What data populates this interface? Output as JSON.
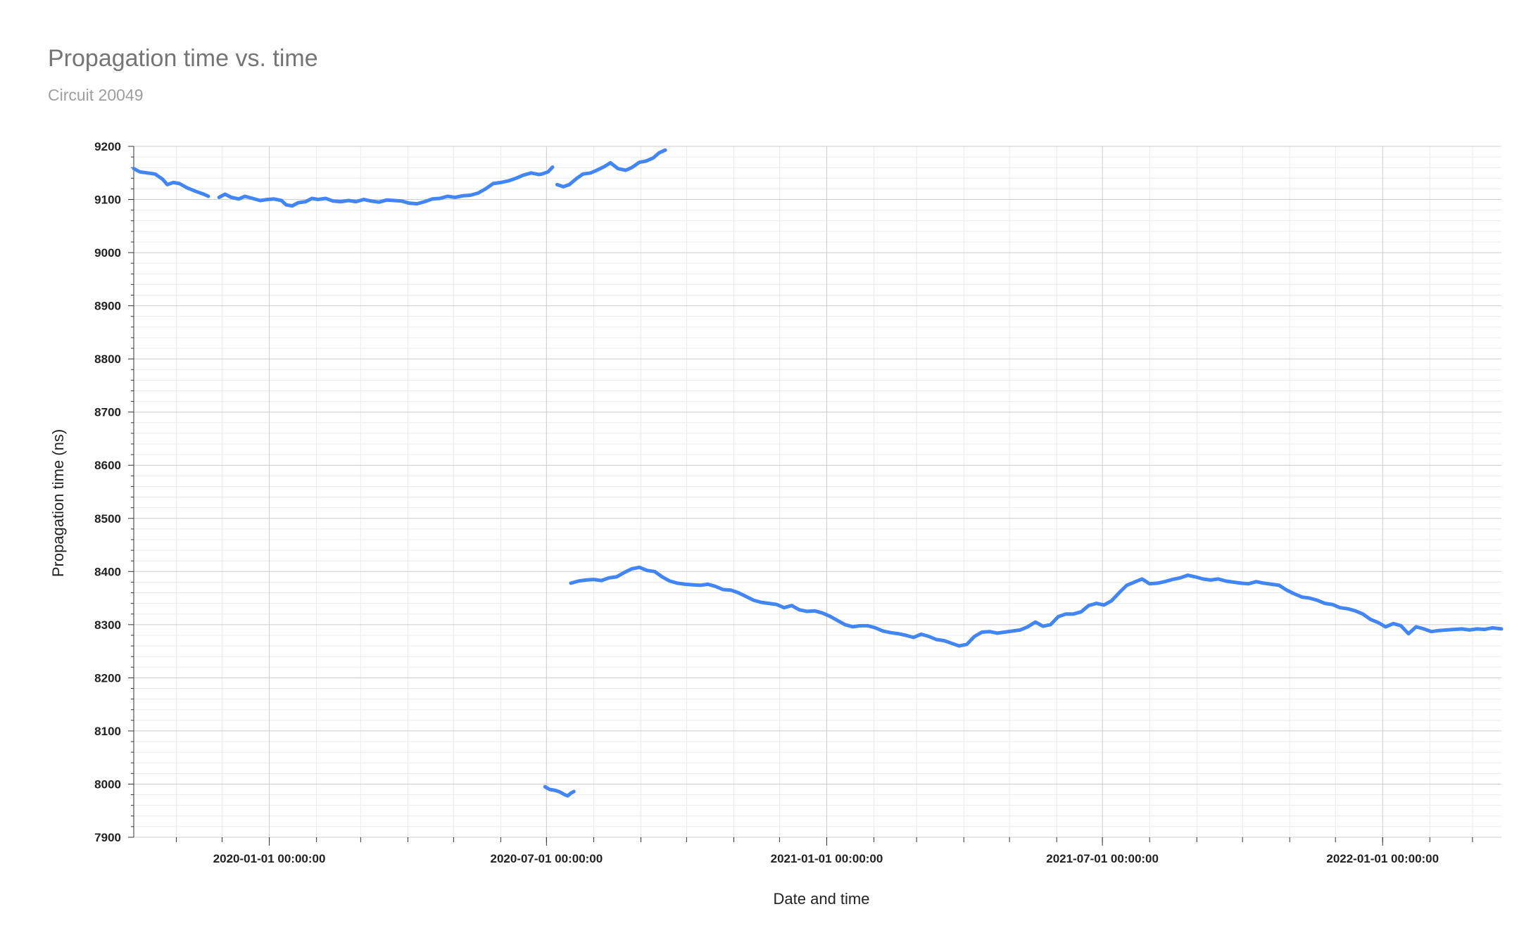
{
  "chart_data": {
    "type": "line",
    "title": "Propagation time vs. time",
    "subtitle": "Circuit 20049",
    "xlabel": "Date and time",
    "ylabel": "Propagation time (ns)",
    "ylim": [
      7900,
      9200
    ],
    "xlim": [
      "2019-10-04",
      "2022-03-20"
    ],
    "yticks": [
      7900,
      8000,
      8100,
      8200,
      8300,
      8400,
      8500,
      8600,
      8700,
      8800,
      8900,
      9000,
      9100,
      9200
    ],
    "xticks": [
      {
        "date": "2020-01-01",
        "label": "2020-01-01 00:00:00"
      },
      {
        "date": "2020-07-01",
        "label": "2020-07-01 00:00:00"
      },
      {
        "date": "2021-01-01",
        "label": "2021-01-01 00:00:00"
      },
      {
        "date": "2021-07-01",
        "label": "2021-07-01 00:00:00"
      },
      {
        "date": "2022-01-01",
        "label": "2022-01-01 00:00:00"
      }
    ],
    "grid": true,
    "legend": "none",
    "colors": {
      "line": "#4285f4",
      "grid_major": "#cccccc",
      "grid_minor": "#ebebeb",
      "axis_text": "#222222"
    },
    "series": [
      {
        "segments": [
          [
            [
              "2019-10-04",
              9158
            ],
            [
              "2019-10-08",
              9152
            ],
            [
              "2019-10-13",
              9150
            ],
            [
              "2019-10-18",
              9148
            ],
            [
              "2019-10-23",
              9138
            ],
            [
              "2019-10-26",
              9128
            ],
            [
              "2019-10-30",
              9132
            ],
            [
              "2019-11-03",
              9130
            ],
            [
              "2019-11-08",
              9122
            ],
            [
              "2019-11-14",
              9115
            ],
            [
              "2019-11-19",
              9110
            ],
            [
              "2019-11-22",
              9106
            ]
          ],
          [
            [
              "2019-11-29",
              9104
            ],
            [
              "2019-12-03",
              9110
            ],
            [
              "2019-12-07",
              9104
            ],
            [
              "2019-12-12",
              9101
            ],
            [
              "2019-12-16",
              9106
            ],
            [
              "2019-12-21",
              9102
            ],
            [
              "2019-12-26",
              9098
            ],
            [
              "2019-12-31",
              9100
            ],
            [
              "2020-01-04",
              9101
            ],
            [
              "2020-01-09",
              9098
            ],
            [
              "2020-01-12",
              9090
            ],
            [
              "2020-01-16",
              9088
            ],
            [
              "2020-01-20",
              9094
            ],
            [
              "2020-01-25",
              9096
            ],
            [
              "2020-01-29",
              9102
            ],
            [
              "2020-02-02",
              9100
            ],
            [
              "2020-02-07",
              9102
            ],
            [
              "2020-02-12",
              9097
            ],
            [
              "2020-02-17",
              9096
            ],
            [
              "2020-02-22",
              9098
            ],
            [
              "2020-02-27",
              9096
            ],
            [
              "2020-03-03",
              9100
            ],
            [
              "2020-03-08",
              9097
            ],
            [
              "2020-03-13",
              9095
            ],
            [
              "2020-03-18",
              9099
            ],
            [
              "2020-03-23",
              9098
            ],
            [
              "2020-03-28",
              9097
            ],
            [
              "2020-04-02",
              9093
            ],
            [
              "2020-04-07",
              9092
            ],
            [
              "2020-04-12",
              9096
            ],
            [
              "2020-04-17",
              9101
            ],
            [
              "2020-04-22",
              9102
            ],
            [
              "2020-04-27",
              9106
            ],
            [
              "2020-05-02",
              9104
            ],
            [
              "2020-05-07",
              9107
            ],
            [
              "2020-05-12",
              9108
            ],
            [
              "2020-05-17",
              9112
            ],
            [
              "2020-05-22",
              9120
            ],
            [
              "2020-05-27",
              9130
            ],
            [
              "2020-06-01",
              9132
            ],
            [
              "2020-06-06",
              9135
            ],
            [
              "2020-06-11",
              9140
            ],
            [
              "2020-06-16",
              9146
            ],
            [
              "2020-06-21",
              9150
            ],
            [
              "2020-06-26",
              9147
            ],
            [
              "2020-06-28",
              9148
            ],
            [
              "2020-07-02",
              9152
            ],
            [
              "2020-07-05",
              9161
            ]
          ],
          [
            [
              "2020-07-08",
              9128
            ],
            [
              "2020-07-12",
              9124
            ],
            [
              "2020-07-16",
              9128
            ],
            [
              "2020-07-21",
              9140
            ],
            [
              "2020-07-25",
              9148
            ],
            [
              "2020-07-30",
              9150
            ],
            [
              "2020-08-03",
              9155
            ],
            [
              "2020-08-08",
              9162
            ],
            [
              "2020-08-12",
              9169
            ],
            [
              "2020-08-17",
              9158
            ],
            [
              "2020-08-22",
              9155
            ],
            [
              "2020-08-26",
              9160
            ],
            [
              "2020-08-31",
              9170
            ],
            [
              "2020-09-04",
              9172
            ],
            [
              "2020-09-09",
              9178
            ],
            [
              "2020-09-13",
              9188
            ],
            [
              "2020-09-17",
              9193
            ]
          ]
        ]
      },
      {
        "segments": [
          [
            [
              "2020-06-30",
              7995
            ],
            [
              "2020-07-03",
              7990
            ],
            [
              "2020-07-07",
              7988
            ],
            [
              "2020-07-10",
              7985
            ],
            [
              "2020-07-13",
              7980
            ],
            [
              "2020-07-15",
              7978
            ],
            [
              "2020-07-17",
              7983
            ],
            [
              "2020-07-19",
              7986
            ]
          ]
        ]
      },
      {
        "segments": [
          [
            [
              "2020-07-17",
              8378
            ],
            [
              "2020-07-22",
              8382
            ],
            [
              "2020-07-27",
              8384
            ],
            [
              "2020-08-01",
              8385
            ],
            [
              "2020-08-06",
              8383
            ],
            [
              "2020-08-11",
              8388
            ],
            [
              "2020-08-16",
              8390
            ],
            [
              "2020-08-21",
              8398
            ],
            [
              "2020-08-26",
              8405
            ],
            [
              "2020-08-31",
              8408
            ],
            [
              "2020-09-05",
              8402
            ],
            [
              "2020-09-10",
              8400
            ],
            [
              "2020-09-15",
              8390
            ],
            [
              "2020-09-20",
              8382
            ],
            [
              "2020-09-25",
              8378
            ],
            [
              "2020-09-30",
              8376
            ],
            [
              "2020-10-05",
              8375
            ],
            [
              "2020-10-10",
              8374
            ],
            [
              "2020-10-15",
              8376
            ],
            [
              "2020-10-20",
              8372
            ],
            [
              "2020-10-25",
              8366
            ],
            [
              "2020-10-30",
              8365
            ],
            [
              "2020-11-04",
              8360
            ],
            [
              "2020-11-09",
              8353
            ],
            [
              "2020-11-14",
              8346
            ],
            [
              "2020-11-19",
              8342
            ],
            [
              "2020-11-24",
              8340
            ],
            [
              "2020-11-29",
              8338
            ],
            [
              "2020-12-04",
              8332
            ],
            [
              "2020-12-09",
              8336
            ],
            [
              "2020-12-14",
              8328
            ],
            [
              "2020-12-19",
              8325
            ],
            [
              "2020-12-24",
              8326
            ],
            [
              "2020-12-29",
              8322
            ],
            [
              "2021-01-03",
              8316
            ],
            [
              "2021-01-08",
              8308
            ],
            [
              "2021-01-13",
              8300
            ],
            [
              "2021-01-18",
              8296
            ],
            [
              "2021-01-23",
              8298
            ],
            [
              "2021-01-28",
              8298
            ],
            [
              "2021-02-02",
              8294
            ],
            [
              "2021-02-07",
              8288
            ],
            [
              "2021-02-12",
              8285
            ],
            [
              "2021-02-17",
              8283
            ],
            [
              "2021-02-22",
              8280
            ],
            [
              "2021-02-27",
              8276
            ],
            [
              "2021-03-04",
              8282
            ],
            [
              "2021-03-09",
              8278
            ],
            [
              "2021-03-14",
              8272
            ],
            [
              "2021-03-19",
              8270
            ],
            [
              "2021-03-24",
              8265
            ],
            [
              "2021-03-29",
              8260
            ],
            [
              "2021-04-03",
              8263
            ],
            [
              "2021-04-08",
              8278
            ],
            [
              "2021-04-13",
              8286
            ],
            [
              "2021-04-18",
              8287
            ],
            [
              "2021-04-23",
              8284
            ],
            [
              "2021-04-28",
              8286
            ],
            [
              "2021-05-03",
              8288
            ],
            [
              "2021-05-08",
              8290
            ],
            [
              "2021-05-13",
              8296
            ],
            [
              "2021-05-18",
              8305
            ],
            [
              "2021-05-23",
              8297
            ],
            [
              "2021-05-28",
              8300
            ],
            [
              "2021-06-02",
              8315
            ],
            [
              "2021-06-07",
              8320
            ],
            [
              "2021-06-12",
              8320
            ],
            [
              "2021-06-17",
              8324
            ],
            [
              "2021-06-22",
              8336
            ],
            [
              "2021-06-27",
              8340
            ],
            [
              "2021-07-02",
              8337
            ],
            [
              "2021-07-07",
              8345
            ],
            [
              "2021-07-12",
              8360
            ],
            [
              "2021-07-17",
              8374
            ],
            [
              "2021-07-22",
              8380
            ],
            [
              "2021-07-27",
              8386
            ],
            [
              "2021-08-01",
              8377
            ],
            [
              "2021-08-06",
              8378
            ],
            [
              "2021-08-11",
              8381
            ],
            [
              "2021-08-16",
              8385
            ],
            [
              "2021-08-21",
              8388
            ],
            [
              "2021-08-26",
              8393
            ],
            [
              "2021-08-31",
              8390
            ],
            [
              "2021-09-05",
              8386
            ],
            [
              "2021-09-10",
              8384
            ],
            [
              "2021-09-15",
              8386
            ],
            [
              "2021-09-20",
              8382
            ],
            [
              "2021-09-25",
              8380
            ],
            [
              "2021-09-30",
              8378
            ],
            [
              "2021-10-05",
              8377
            ],
            [
              "2021-10-10",
              8381
            ],
            [
              "2021-10-15",
              8378
            ],
            [
              "2021-10-20",
              8376
            ],
            [
              "2021-10-25",
              8374
            ],
            [
              "2021-10-30",
              8365
            ],
            [
              "2021-11-04",
              8358
            ],
            [
              "2021-11-09",
              8352
            ],
            [
              "2021-11-14",
              8350
            ],
            [
              "2021-11-19",
              8346
            ],
            [
              "2021-11-24",
              8340
            ],
            [
              "2021-11-29",
              8338
            ],
            [
              "2021-12-04",
              8332
            ],
            [
              "2021-12-09",
              8330
            ],
            [
              "2021-12-14",
              8326
            ],
            [
              "2021-12-19",
              8320
            ],
            [
              "2021-12-24",
              8310
            ],
            [
              "2021-12-29",
              8304
            ],
            [
              "2022-01-03",
              8296
            ],
            [
              "2022-01-08",
              8302
            ],
            [
              "2022-01-13",
              8298
            ],
            [
              "2022-01-18",
              8283
            ],
            [
              "2022-01-23",
              8296
            ],
            [
              "2022-01-28",
              8292
            ],
            [
              "2022-02-02",
              8287
            ],
            [
              "2022-02-07",
              8289
            ],
            [
              "2022-02-12",
              8290
            ],
            [
              "2022-02-17",
              8291
            ],
            [
              "2022-02-22",
              8292
            ],
            [
              "2022-02-27",
              8290
            ],
            [
              "2022-03-04",
              8292
            ],
            [
              "2022-03-09",
              8291
            ],
            [
              "2022-03-14",
              8294
            ],
            [
              "2022-03-20",
              8292
            ]
          ]
        ]
      }
    ]
  }
}
